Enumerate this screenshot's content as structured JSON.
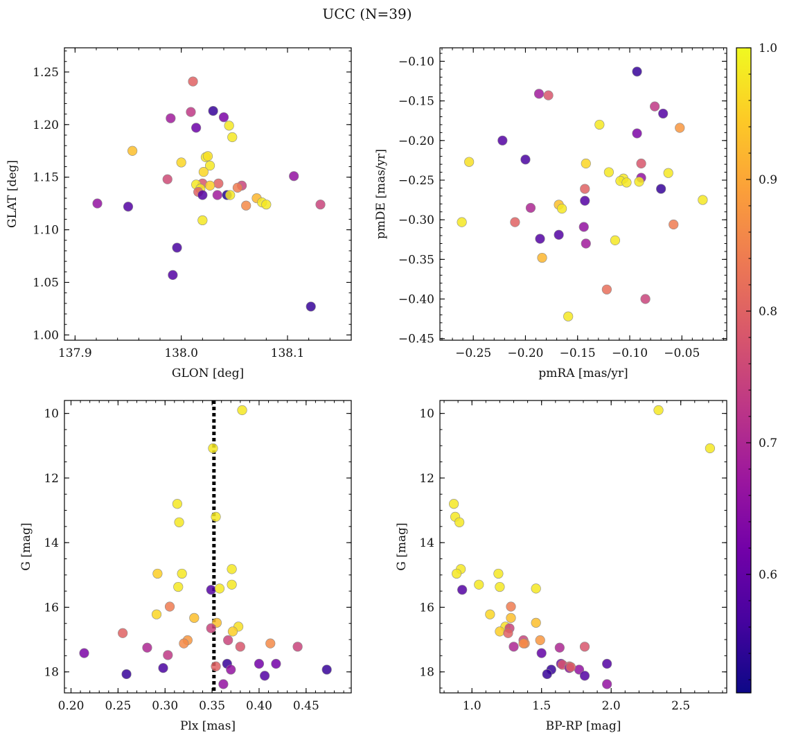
{
  "figure": {
    "suptitle": "UCC (N=39)"
  },
  "colorbar": {
    "range": [
      0.51,
      1.0
    ],
    "ticks": [
      0.6,
      0.7,
      0.8,
      0.9,
      1.0
    ],
    "tick_labels": [
      "0.6",
      "0.7",
      "0.8",
      "0.9",
      "1.0"
    ],
    "colormap": "plasma",
    "stops": [
      "#0d0887",
      "#46039f",
      "#7201a8",
      "#9c179e",
      "#bd3786",
      "#d8576b",
      "#ed7953",
      "#fb9f3a",
      "#fdca26",
      "#f0f921"
    ]
  },
  "chart_data": [
    {
      "type": "scatter",
      "id": "lonlat",
      "title": "",
      "xlabel": "GLON [deg]",
      "ylabel": "GLAT [deg]",
      "xlim": [
        137.89,
        138.16
      ],
      "ylim": [
        0.995,
        1.273
      ],
      "xticks": [
        137.9,
        138.0,
        138.1
      ],
      "xtick_labels": [
        "137.9",
        "138.0",
        "138.1"
      ],
      "yticks": [
        1.0,
        1.05,
        1.1,
        1.15,
        1.2,
        1.25
      ],
      "ytick_labels": [
        "1.00",
        "1.05",
        "1.10",
        "1.15",
        "1.20",
        "1.25"
      ],
      "xminor": 0.02,
      "yminor": 0.01,
      "points": [
        {
          "x": 138.011,
          "y": 1.241,
          "c": 0.8
        },
        {
          "x": 138.03,
          "y": 1.213,
          "c": 0.55
        },
        {
          "x": 138.009,
          "y": 1.212,
          "c": 0.73
        },
        {
          "x": 137.99,
          "y": 1.206,
          "c": 0.68
        },
        {
          "x": 138.04,
          "y": 1.207,
          "c": 0.63
        },
        {
          "x": 138.014,
          "y": 1.197,
          "c": 0.61
        },
        {
          "x": 138.045,
          "y": 1.199,
          "c": 0.98
        },
        {
          "x": 138.048,
          "y": 1.188,
          "c": 0.98
        },
        {
          "x": 137.954,
          "y": 1.175,
          "c": 0.93
        },
        {
          "x": 138.023,
          "y": 1.169,
          "c": 0.98
        },
        {
          "x": 138.025,
          "y": 1.17,
          "c": 0.97
        },
        {
          "x": 138.0,
          "y": 1.164,
          "c": 0.96
        },
        {
          "x": 138.027,
          "y": 1.161,
          "c": 0.98
        },
        {
          "x": 138.021,
          "y": 1.155,
          "c": 0.96
        },
        {
          "x": 138.106,
          "y": 1.151,
          "c": 0.66
        },
        {
          "x": 137.987,
          "y": 1.148,
          "c": 0.76
        },
        {
          "x": 138.02,
          "y": 1.144,
          "c": 0.78
        },
        {
          "x": 138.035,
          "y": 1.144,
          "c": 0.8
        },
        {
          "x": 138.014,
          "y": 1.143,
          "c": 0.98
        },
        {
          "x": 138.027,
          "y": 1.142,
          "c": 0.95
        },
        {
          "x": 138.057,
          "y": 1.142,
          "c": 0.75
        },
        {
          "x": 138.053,
          "y": 1.14,
          "c": 0.84
        },
        {
          "x": 138.018,
          "y": 1.139,
          "c": 0.98
        },
        {
          "x": 138.016,
          "y": 1.136,
          "c": 0.8
        },
        {
          "x": 138.02,
          "y": 1.133,
          "c": 0.58
        },
        {
          "x": 138.034,
          "y": 1.133,
          "c": 0.68
        },
        {
          "x": 138.043,
          "y": 1.133,
          "c": 0.53
        },
        {
          "x": 138.046,
          "y": 1.133,
          "c": 0.98
        },
        {
          "x": 138.071,
          "y": 1.13,
          "c": 0.92
        },
        {
          "x": 138.076,
          "y": 1.126,
          "c": 0.98
        },
        {
          "x": 137.921,
          "y": 1.125,
          "c": 0.66
        },
        {
          "x": 138.08,
          "y": 1.124,
          "c": 0.98
        },
        {
          "x": 138.131,
          "y": 1.124,
          "c": 0.75
        },
        {
          "x": 138.061,
          "y": 1.123,
          "c": 0.86
        },
        {
          "x": 137.95,
          "y": 1.122,
          "c": 0.58
        },
        {
          "x": 138.02,
          "y": 1.109,
          "c": 0.98
        },
        {
          "x": 137.996,
          "y": 1.083,
          "c": 0.57
        },
        {
          "x": 137.992,
          "y": 1.057,
          "c": 0.58
        },
        {
          "x": 138.122,
          "y": 1.027,
          "c": 0.55
        }
      ]
    },
    {
      "type": "scatter",
      "id": "pm",
      "title": "",
      "xlabel": "pmRA [mas/yr]",
      "ylabel": "pmDE [mas/yr]",
      "xlim": [
        -0.282,
        -0.007
      ],
      "ylim": [
        -0.452,
        -0.083
      ],
      "xticks": [
        -0.25,
        -0.2,
        -0.15,
        -0.1,
        -0.05
      ],
      "xtick_labels": [
        "−0.25",
        "−0.20",
        "−0.15",
        "−0.10",
        "−0.05"
      ],
      "yticks": [
        -0.45,
        -0.4,
        -0.35,
        -0.3,
        -0.25,
        -0.2,
        -0.15,
        -0.1
      ],
      "ytick_labels": [
        "−0.45",
        "−0.40",
        "−0.35",
        "−0.30",
        "−0.25",
        "−0.20",
        "−0.15",
        "−0.10"
      ],
      "xminor": 0.01,
      "yminor": 0.01,
      "points": [
        {
          "x": -0.093,
          "y": -0.113,
          "c": 0.55
        },
        {
          "x": -0.187,
          "y": -0.141,
          "c": 0.68
        },
        {
          "x": -0.178,
          "y": -0.143,
          "c": 0.78
        },
        {
          "x": -0.076,
          "y": -0.157,
          "c": 0.73
        },
        {
          "x": -0.068,
          "y": -0.166,
          "c": 0.58
        },
        {
          "x": -0.129,
          "y": -0.18,
          "c": 0.98
        },
        {
          "x": -0.052,
          "y": -0.184,
          "c": 0.88
        },
        {
          "x": -0.093,
          "y": -0.191,
          "c": 0.63
        },
        {
          "x": -0.222,
          "y": -0.2,
          "c": 0.58
        },
        {
          "x": -0.2,
          "y": -0.224,
          "c": 0.57
        },
        {
          "x": -0.254,
          "y": -0.227,
          "c": 0.97
        },
        {
          "x": -0.142,
          "y": -0.229,
          "c": 0.96
        },
        {
          "x": -0.089,
          "y": -0.229,
          "c": 0.78
        },
        {
          "x": -0.12,
          "y": -0.24,
          "c": 0.98
        },
        {
          "x": -0.063,
          "y": -0.241,
          "c": 0.98
        },
        {
          "x": -0.089,
          "y": -0.247,
          "c": 0.66
        },
        {
          "x": -0.106,
          "y": -0.248,
          "c": 0.98
        },
        {
          "x": -0.109,
          "y": -0.251,
          "c": 0.98
        },
        {
          "x": -0.103,
          "y": -0.253,
          "c": 0.98
        },
        {
          "x": -0.091,
          "y": -0.252,
          "c": 0.98
        },
        {
          "x": -0.07,
          "y": -0.261,
          "c": 0.55
        },
        {
          "x": -0.143,
          "y": -0.261,
          "c": 0.8
        },
        {
          "x": -0.143,
          "y": -0.276,
          "c": 0.58
        },
        {
          "x": -0.03,
          "y": -0.275,
          "c": 0.98
        },
        {
          "x": -0.168,
          "y": -0.281,
          "c": 0.93
        },
        {
          "x": -0.165,
          "y": -0.286,
          "c": 0.98
        },
        {
          "x": -0.195,
          "y": -0.285,
          "c": 0.7
        },
        {
          "x": -0.261,
          "y": -0.303,
          "c": 0.98
        },
        {
          "x": -0.21,
          "y": -0.303,
          "c": 0.8
        },
        {
          "x": -0.058,
          "y": -0.306,
          "c": 0.84
        },
        {
          "x": -0.144,
          "y": -0.309,
          "c": 0.66
        },
        {
          "x": -0.168,
          "y": -0.319,
          "c": 0.58
        },
        {
          "x": -0.186,
          "y": -0.324,
          "c": 0.58
        },
        {
          "x": -0.114,
          "y": -0.326,
          "c": 0.98
        },
        {
          "x": -0.142,
          "y": -0.33,
          "c": 0.68
        },
        {
          "x": -0.184,
          "y": -0.348,
          "c": 0.92
        },
        {
          "x": -0.122,
          "y": -0.388,
          "c": 0.82
        },
        {
          "x": -0.085,
          "y": -0.4,
          "c": 0.75
        },
        {
          "x": -0.159,
          "y": -0.422,
          "c": 0.98
        }
      ]
    },
    {
      "type": "scatter",
      "id": "plx",
      "title": "",
      "xlabel": "Plx [mas]",
      "ylabel": "G [mag]",
      "xlim": [
        0.193,
        0.498
      ],
      "ylim": [
        18.65,
        9.6
      ],
      "xticks": [
        0.2,
        0.25,
        0.3,
        0.35,
        0.4,
        0.45
      ],
      "xtick_labels": [
        "0.20",
        "0.25",
        "0.30",
        "0.35",
        "0.40",
        "0.45"
      ],
      "yticks": [
        10,
        12,
        14,
        16,
        18
      ],
      "ytick_labels": [
        "10",
        "12",
        "14",
        "16",
        "18"
      ],
      "xminor": 0.01,
      "yminor": 0.5,
      "vline": 0.352,
      "points": [
        {
          "x": 0.382,
          "y": 9.9,
          "c": 0.98
        },
        {
          "x": 0.351,
          "y": 11.08,
          "c": 0.98
        },
        {
          "x": 0.313,
          "y": 12.8,
          "c": 0.98
        },
        {
          "x": 0.354,
          "y": 13.2,
          "c": 0.98
        },
        {
          "x": 0.315,
          "y": 13.37,
          "c": 0.98
        },
        {
          "x": 0.371,
          "y": 14.82,
          "c": 0.98
        },
        {
          "x": 0.292,
          "y": 14.96,
          "c": 0.95
        },
        {
          "x": 0.318,
          "y": 14.96,
          "c": 0.98
        },
        {
          "x": 0.371,
          "y": 15.3,
          "c": 0.98
        },
        {
          "x": 0.314,
          "y": 15.37,
          "c": 0.98
        },
        {
          "x": 0.349,
          "y": 15.46,
          "c": 0.58
        },
        {
          "x": 0.358,
          "y": 15.42,
          "c": 0.98
        },
        {
          "x": 0.305,
          "y": 15.98,
          "c": 0.84
        },
        {
          "x": 0.291,
          "y": 16.22,
          "c": 0.96
        },
        {
          "x": 0.331,
          "y": 16.33,
          "c": 0.93
        },
        {
          "x": 0.355,
          "y": 16.48,
          "c": 0.93
        },
        {
          "x": 0.378,
          "y": 16.6,
          "c": 0.97
        },
        {
          "x": 0.349,
          "y": 16.65,
          "c": 0.75
        },
        {
          "x": 0.372,
          "y": 16.75,
          "c": 0.95
        },
        {
          "x": 0.255,
          "y": 16.8,
          "c": 0.8
        },
        {
          "x": 0.324,
          "y": 17.02,
          "c": 0.88
        },
        {
          "x": 0.367,
          "y": 17.02,
          "c": 0.75
        },
        {
          "x": 0.412,
          "y": 17.12,
          "c": 0.86
        },
        {
          "x": 0.32,
          "y": 17.12,
          "c": 0.86
        },
        {
          "x": 0.281,
          "y": 17.25,
          "c": 0.7
        },
        {
          "x": 0.38,
          "y": 17.22,
          "c": 0.78
        },
        {
          "x": 0.441,
          "y": 17.22,
          "c": 0.75
        },
        {
          "x": 0.214,
          "y": 17.42,
          "c": 0.63
        },
        {
          "x": 0.303,
          "y": 17.48,
          "c": 0.73
        },
        {
          "x": 0.366,
          "y": 17.75,
          "c": 0.55
        },
        {
          "x": 0.4,
          "y": 17.75,
          "c": 0.62
        },
        {
          "x": 0.418,
          "y": 17.75,
          "c": 0.62
        },
        {
          "x": 0.354,
          "y": 17.83,
          "c": 0.8
        },
        {
          "x": 0.298,
          "y": 17.88,
          "c": 0.57
        },
        {
          "x": 0.37,
          "y": 17.93,
          "c": 0.66
        },
        {
          "x": 0.472,
          "y": 17.93,
          "c": 0.55
        },
        {
          "x": 0.259,
          "y": 18.07,
          "c": 0.55
        },
        {
          "x": 0.406,
          "y": 18.12,
          "c": 0.58
        },
        {
          "x": 0.362,
          "y": 18.38,
          "c": 0.66
        }
      ]
    },
    {
      "type": "scatter",
      "id": "cmd",
      "title": "",
      "xlabel": "BP-RP [mag]",
      "ylabel": "G [mag]",
      "xlim": [
        0.77,
        2.83
      ],
      "ylim": [
        18.65,
        9.6
      ],
      "xticks": [
        1.0,
        1.5,
        2.0,
        2.5
      ],
      "xtick_labels": [
        "1.0",
        "1.5",
        "2.0",
        "2.5"
      ],
      "yticks": [
        10,
        12,
        14,
        16,
        18
      ],
      "ytick_labels": [
        "10",
        "12",
        "14",
        "16",
        "18"
      ],
      "xminor": 0.1,
      "yminor": 0.5,
      "points": [
        {
          "x": 2.34,
          "y": 9.9,
          "c": 0.98
        },
        {
          "x": 2.71,
          "y": 11.08,
          "c": 0.98
        },
        {
          "x": 0.87,
          "y": 12.8,
          "c": 0.98
        },
        {
          "x": 0.88,
          "y": 13.2,
          "c": 0.98
        },
        {
          "x": 0.91,
          "y": 13.37,
          "c": 0.98
        },
        {
          "x": 0.92,
          "y": 14.82,
          "c": 0.98
        },
        {
          "x": 0.89,
          "y": 14.96,
          "c": 0.98
        },
        {
          "x": 1.19,
          "y": 14.96,
          "c": 0.98
        },
        {
          "x": 1.05,
          "y": 15.3,
          "c": 0.98
        },
        {
          "x": 1.2,
          "y": 15.37,
          "c": 0.98
        },
        {
          "x": 0.93,
          "y": 15.46,
          "c": 0.58
        },
        {
          "x": 1.46,
          "y": 15.42,
          "c": 0.98
        },
        {
          "x": 1.28,
          "y": 15.98,
          "c": 0.84
        },
        {
          "x": 1.13,
          "y": 16.22,
          "c": 0.96
        },
        {
          "x": 1.28,
          "y": 16.33,
          "c": 0.93
        },
        {
          "x": 1.46,
          "y": 16.48,
          "c": 0.93
        },
        {
          "x": 1.24,
          "y": 16.6,
          "c": 0.97
        },
        {
          "x": 1.27,
          "y": 16.65,
          "c": 0.75
        },
        {
          "x": 1.2,
          "y": 16.75,
          "c": 0.95
        },
        {
          "x": 1.26,
          "y": 16.8,
          "c": 0.8
        },
        {
          "x": 1.37,
          "y": 17.02,
          "c": 0.75
        },
        {
          "x": 1.49,
          "y": 17.02,
          "c": 0.88
        },
        {
          "x": 1.38,
          "y": 17.12,
          "c": 0.86
        },
        {
          "x": 1.37,
          "y": 17.12,
          "c": 0.86
        },
        {
          "x": 1.3,
          "y": 17.22,
          "c": 0.7
        },
        {
          "x": 1.81,
          "y": 17.22,
          "c": 0.78
        },
        {
          "x": 1.63,
          "y": 17.25,
          "c": 0.7
        },
        {
          "x": 1.5,
          "y": 17.42,
          "c": 0.6
        },
        {
          "x": 1.64,
          "y": 17.75,
          "c": 0.62
        },
        {
          "x": 1.97,
          "y": 17.75,
          "c": 0.58
        },
        {
          "x": 1.65,
          "y": 17.78,
          "c": 0.78
        },
        {
          "x": 1.7,
          "y": 17.83,
          "c": 0.8
        },
        {
          "x": 1.7,
          "y": 17.88,
          "c": 0.66
        },
        {
          "x": 1.57,
          "y": 17.93,
          "c": 0.55
        },
        {
          "x": 1.77,
          "y": 17.93,
          "c": 0.66
        },
        {
          "x": 1.54,
          "y": 18.07,
          "c": 0.55
        },
        {
          "x": 1.81,
          "y": 18.12,
          "c": 0.58
        },
        {
          "x": 1.97,
          "y": 18.38,
          "c": 0.66
        },
        {
          "x": 1.71,
          "y": 17.85,
          "c": 0.8
        }
      ]
    }
  ]
}
